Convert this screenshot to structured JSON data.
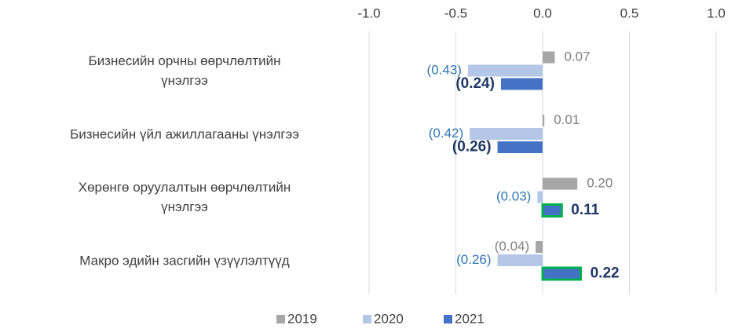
{
  "chart_data": {
    "type": "hbar",
    "categories": [
      "Бизнесийн орчны өөрчлөлтийн\nүнэлгээ",
      "Бизнесийн үйл ажиллагааны үнэлгээ",
      "Хөрөнгө оруулалтын өөрчлөлтийн\nүнэлгээ",
      "Макро эдийн засгийн үзүүлэлтүүд"
    ],
    "series": [
      {
        "name": "2019",
        "color": "#a6a6a6",
        "label_color": "#7f7f7f",
        "values": [
          0.07,
          0.01,
          0.2,
          -0.04
        ],
        "value_labels": [
          "0.07",
          "0.01",
          "0.20",
          "(0.04)"
        ]
      },
      {
        "name": "2020",
        "color": "#b4c7e7",
        "label_color": "#2e75b6",
        "values": [
          -0.43,
          -0.42,
          -0.03,
          -0.26
        ],
        "value_labels": [
          "(0.43)",
          "(0.42)",
          "(0.03)",
          "(0.26)"
        ]
      },
      {
        "name": "2021",
        "color": "#4472c4",
        "label_color": "#1f3864",
        "label_bold": true,
        "positive_outline": "#00b050",
        "values": [
          -0.24,
          -0.26,
          0.11,
          0.22
        ],
        "value_labels": [
          "(0.24)",
          "(0.26)",
          "0.11",
          "0.22"
        ]
      }
    ],
    "xlim": [
      -1,
      1
    ],
    "xticks": [
      {
        "value": -1,
        "label": "-1.0"
      },
      {
        "value": -0.5,
        "label": "-0.5"
      },
      {
        "value": 0,
        "label": "0.0"
      },
      0.5,
      {
        "value": 1,
        "label": "1.0"
      }
    ],
    "grid": true,
    "legend": "bottom"
  }
}
